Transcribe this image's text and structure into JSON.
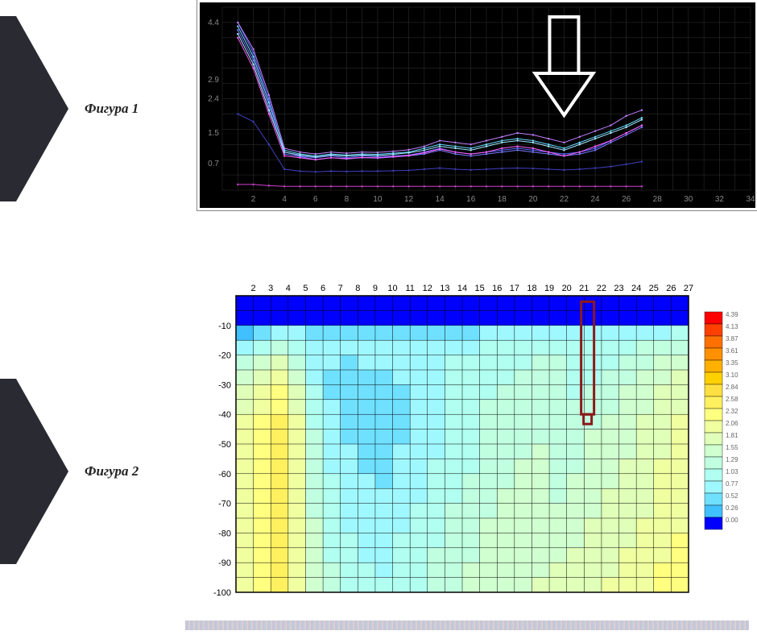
{
  "labels": {
    "fig1": "Фигура 1",
    "fig2": "Фигура 2"
  },
  "decor": {
    "arrow_color": "#2a2a33",
    "page_bg": "#ffffff"
  },
  "line_chart": {
    "type": "line",
    "bg": "#000000",
    "grid_color": "#333333",
    "axis_color": "#888888",
    "border_color": "#ffffff",
    "xlim": [
      0,
      34
    ],
    "ylim": [
      0,
      4.8
    ],
    "xticks": [
      2,
      4,
      6,
      8,
      10,
      12,
      14,
      16,
      18,
      20,
      22,
      24,
      26,
      28,
      30,
      32,
      34
    ],
    "yticks": [
      0.7,
      1.5,
      2.4,
      2.9,
      4.4
    ],
    "arrow_annotation": {
      "x": 22,
      "color": "#ffffff",
      "stroke_width": 4
    },
    "series": [
      {
        "color": "#5b6bff",
        "width": 1,
        "y": [
          4.4,
          3.6,
          2.4,
          1.0,
          0.9,
          0.85,
          0.9,
          0.85,
          0.9,
          0.88,
          0.9,
          0.92,
          1.0,
          1.1,
          1.0,
          0.95,
          1.0,
          1.05,
          1.1,
          1.05,
          1.0,
          0.95,
          1.0,
          1.1,
          1.3,
          1.5,
          1.7
        ]
      },
      {
        "color": "#7a7aff",
        "width": 1,
        "y": [
          4.2,
          3.4,
          2.2,
          0.95,
          0.88,
          0.8,
          0.85,
          0.82,
          0.85,
          0.84,
          0.87,
          0.9,
          0.95,
          1.05,
          0.95,
          0.9,
          0.95,
          1.0,
          1.05,
          1.0,
          0.95,
          0.9,
          0.95,
          1.05,
          1.25,
          1.45,
          1.65
        ]
      },
      {
        "color": "#67d9ff",
        "width": 1,
        "y": [
          4.3,
          3.5,
          2.3,
          1.05,
          0.95,
          0.9,
          0.95,
          0.92,
          0.95,
          0.94,
          0.97,
          1.0,
          1.1,
          1.2,
          1.15,
          1.1,
          1.2,
          1.3,
          1.35,
          1.3,
          1.2,
          1.1,
          1.25,
          1.4,
          1.55,
          1.7,
          1.9
        ]
      },
      {
        "color": "#a5e8ff",
        "width": 1,
        "y": [
          4.1,
          3.3,
          2.1,
          1.0,
          0.92,
          0.87,
          0.92,
          0.9,
          0.92,
          0.91,
          0.94,
          0.98,
          1.05,
          1.15,
          1.1,
          1.05,
          1.15,
          1.25,
          1.3,
          1.25,
          1.15,
          1.05,
          1.2,
          1.35,
          1.5,
          1.65,
          1.85
        ]
      },
      {
        "color": "#c080ff",
        "width": 1,
        "y": [
          4.4,
          3.7,
          2.5,
          1.1,
          1.0,
          0.95,
          1.0,
          0.97,
          1.0,
          0.99,
          1.02,
          1.06,
          1.15,
          1.3,
          1.25,
          1.2,
          1.3,
          1.4,
          1.5,
          1.45,
          1.35,
          1.25,
          1.4,
          1.55,
          1.7,
          1.95,
          2.1
        ]
      },
      {
        "color": "#ff60ff",
        "width": 1,
        "y": [
          4.0,
          3.2,
          2.0,
          0.9,
          0.85,
          0.8,
          0.85,
          0.83,
          0.86,
          0.85,
          0.88,
          0.91,
          0.98,
          1.08,
          1.0,
          0.95,
          1.0,
          1.1,
          1.15,
          1.1,
          1.0,
          0.9,
          1.0,
          1.15,
          1.3,
          1.5,
          1.7
        ]
      },
      {
        "color": "#4040c0",
        "width": 1,
        "y": [
          2.0,
          1.8,
          1.2,
          0.55,
          0.5,
          0.48,
          0.5,
          0.49,
          0.5,
          0.5,
          0.51,
          0.52,
          0.55,
          0.58,
          0.55,
          0.53,
          0.55,
          0.57,
          0.58,
          0.57,
          0.55,
          0.53,
          0.55,
          0.58,
          0.62,
          0.68,
          0.75
        ]
      },
      {
        "color": "#d040d0",
        "width": 1,
        "y": [
          0.15,
          0.15,
          0.12,
          0.1,
          0.1,
          0.1,
          0.1,
          0.1,
          0.1,
          0.1,
          0.1,
          0.1,
          0.1,
          0.1,
          0.1,
          0.1,
          0.1,
          0.1,
          0.1,
          0.1,
          0.1,
          0.1,
          0.1,
          0.1,
          0.1,
          0.1,
          0.1
        ]
      }
    ]
  },
  "heatmap": {
    "type": "heatmap",
    "xlim": [
      1,
      27
    ],
    "ylim": [
      -100,
      0
    ],
    "xticks": [
      2,
      3,
      4,
      5,
      6,
      7,
      8,
      9,
      10,
      11,
      12,
      13,
      14,
      15,
      16,
      17,
      18,
      19,
      20,
      21,
      22,
      23,
      24,
      25,
      26,
      27
    ],
    "yticks": [
      -10,
      -20,
      -30,
      -40,
      -50,
      -60,
      -70,
      -80,
      -90,
      -100
    ],
    "grid_color": "#000000",
    "grid_width": 0.5,
    "callout_box": {
      "x": 21.2,
      "y_top": -2,
      "y_bot": -40,
      "color": "#8b1a1a",
      "width": 3
    },
    "legend": [
      {
        "v": "4.39",
        "c": "#ff0000"
      },
      {
        "v": "4.13",
        "c": "#ff4000"
      },
      {
        "v": "3.87",
        "c": "#ff7000"
      },
      {
        "v": "3.61",
        "c": "#ff9000"
      },
      {
        "v": "3.35",
        "c": "#ffb000"
      },
      {
        "v": "3.10",
        "c": "#ffd000"
      },
      {
        "v": "2.84",
        "c": "#ffe040"
      },
      {
        "v": "2.58",
        "c": "#fff060"
      },
      {
        "v": "2.32",
        "c": "#ffff80"
      },
      {
        "v": "2.06",
        "c": "#f0ffa0"
      },
      {
        "v": "1.81",
        "c": "#e0ffb8"
      },
      {
        "v": "1.55",
        "c": "#d0ffd0"
      },
      {
        "v": "1.29",
        "c": "#c0ffe0"
      },
      {
        "v": "1.03",
        "c": "#b0fff0"
      },
      {
        "v": "0.77",
        "c": "#a0f8ff"
      },
      {
        "v": "0.52",
        "c": "#70e0ff"
      },
      {
        "v": "0.26",
        "c": "#40c0ff"
      },
      {
        "v": "0.00",
        "c": "#0000ff"
      }
    ],
    "cells": {
      "nx": 26,
      "ny": 20,
      "color_rows": [
        [
          "#0000ff",
          "#0000ff",
          "#0000ff",
          "#0000ff",
          "#0000ff",
          "#0000ff",
          "#0000ff",
          "#0000ff",
          "#0000ff",
          "#0000ff",
          "#0000ff",
          "#0000ff",
          "#0000ff",
          "#0000ff",
          "#0000ff",
          "#0000ff",
          "#0000ff",
          "#0000ff",
          "#0000ff",
          "#0000ff",
          "#0000ff",
          "#0000ff",
          "#0000ff",
          "#0000ff",
          "#0000ff",
          "#0000ff"
        ],
        [
          "#0000ff",
          "#0000ff",
          "#0000ff",
          "#0000ff",
          "#0000ff",
          "#0000ff",
          "#0000ff",
          "#0000ff",
          "#0000ff",
          "#0000ff",
          "#0000ff",
          "#0000ff",
          "#0000ff",
          "#0000ff",
          "#0000ff",
          "#0000ff",
          "#0000ff",
          "#0000ff",
          "#0000ff",
          "#0000ff",
          "#0000ff",
          "#0000ff",
          "#0000ff",
          "#0000ff",
          "#0000ff",
          "#0000ff"
        ],
        [
          "#40c0ff",
          "#70e0ff",
          "#a0f8ff",
          "#a0f8ff",
          "#70e0ff",
          "#70e0ff",
          "#70e0ff",
          "#70e0ff",
          "#70e0ff",
          "#70e0ff",
          "#70e0ff",
          "#70e0ff",
          "#70e0ff",
          "#70e0ff",
          "#a0f8ff",
          "#a0f8ff",
          "#a0f8ff",
          "#a0f8ff",
          "#a0f8ff",
          "#a0f8ff",
          "#a0f8ff",
          "#a0f8ff",
          "#a0f8ff",
          "#a0f8ff",
          "#a0f8ff",
          "#b0fff0"
        ],
        [
          "#a0f8ff",
          "#b0fff0",
          "#c0ffe0",
          "#b0fff0",
          "#a0f8ff",
          "#a0f8ff",
          "#a0f8ff",
          "#a0f8ff",
          "#a0f8ff",
          "#a0f8ff",
          "#a0f8ff",
          "#a0f8ff",
          "#a0f8ff",
          "#a0f8ff",
          "#b0fff0",
          "#b0fff0",
          "#b0fff0",
          "#b0fff0",
          "#b0fff0",
          "#b0fff0",
          "#b0fff0",
          "#b0fff0",
          "#b0fff0",
          "#c0ffe0",
          "#c0ffe0",
          "#c0ffe0"
        ],
        [
          "#c0ffe0",
          "#d0ffd0",
          "#e0ffb8",
          "#c0ffe0",
          "#a0f8ff",
          "#a0f8ff",
          "#70e0ff",
          "#a0f8ff",
          "#a0f8ff",
          "#a0f8ff",
          "#a0f8ff",
          "#a0f8ff",
          "#b0fff0",
          "#b0fff0",
          "#b0fff0",
          "#b0fff0",
          "#b0fff0",
          "#c0ffe0",
          "#c0ffe0",
          "#b0fff0",
          "#b0fff0",
          "#b0fff0",
          "#c0ffe0",
          "#c0ffe0",
          "#d0ffd0",
          "#d0ffd0"
        ],
        [
          "#d0ffd0",
          "#e0ffb8",
          "#f0ffa0",
          "#d0ffd0",
          "#a0f8ff",
          "#70e0ff",
          "#70e0ff",
          "#70e0ff",
          "#70e0ff",
          "#a0f8ff",
          "#a0f8ff",
          "#a0f8ff",
          "#b0fff0",
          "#b0fff0",
          "#b0fff0",
          "#b0fff0",
          "#c0ffe0",
          "#c0ffe0",
          "#c0ffe0",
          "#b0fff0",
          "#b0fff0",
          "#c0ffe0",
          "#c0ffe0",
          "#d0ffd0",
          "#d0ffd0",
          "#e0ffb8"
        ],
        [
          "#e0ffb8",
          "#f0ffa0",
          "#ffff80",
          "#e0ffb8",
          "#b0fff0",
          "#70e0ff",
          "#70e0ff",
          "#70e0ff",
          "#70e0ff",
          "#70e0ff",
          "#a0f8ff",
          "#a0f8ff",
          "#b0fff0",
          "#b0fff0",
          "#b0fff0",
          "#c0ffe0",
          "#c0ffe0",
          "#c0ffe0",
          "#c0ffe0",
          "#b0fff0",
          "#c0ffe0",
          "#c0ffe0",
          "#d0ffd0",
          "#d0ffd0",
          "#e0ffb8",
          "#e0ffb8"
        ],
        [
          "#e0ffb8",
          "#f0ffa0",
          "#ffff80",
          "#e0ffb8",
          "#b0fff0",
          "#a0f8ff",
          "#70e0ff",
          "#70e0ff",
          "#70e0ff",
          "#70e0ff",
          "#a0f8ff",
          "#a0f8ff",
          "#b0fff0",
          "#b0fff0",
          "#c0ffe0",
          "#c0ffe0",
          "#c0ffe0",
          "#c0ffe0",
          "#c0ffe0",
          "#c0ffe0",
          "#c0ffe0",
          "#c0ffe0",
          "#d0ffd0",
          "#d0ffd0",
          "#e0ffb8",
          "#e0ffb8"
        ],
        [
          "#f0ffa0",
          "#ffff80",
          "#fff060",
          "#f0ffa0",
          "#b0fff0",
          "#a0f8ff",
          "#70e0ff",
          "#70e0ff",
          "#70e0ff",
          "#70e0ff",
          "#a0f8ff",
          "#a0f8ff",
          "#b0fff0",
          "#b0fff0",
          "#c0ffe0",
          "#c0ffe0",
          "#c0ffe0",
          "#c0ffe0",
          "#c0ffe0",
          "#c0ffe0",
          "#c0ffe0",
          "#d0ffd0",
          "#d0ffd0",
          "#e0ffb8",
          "#e0ffb8",
          "#f0ffa0"
        ],
        [
          "#f0ffa0",
          "#ffff80",
          "#fff060",
          "#f0ffa0",
          "#c0ffe0",
          "#a0f8ff",
          "#70e0ff",
          "#70e0ff",
          "#70e0ff",
          "#70e0ff",
          "#a0f8ff",
          "#a0f8ff",
          "#b0fff0",
          "#b0fff0",
          "#c0ffe0",
          "#c0ffe0",
          "#c0ffe0",
          "#c0ffe0",
          "#c0ffe0",
          "#c0ffe0",
          "#d0ffd0",
          "#d0ffd0",
          "#d0ffd0",
          "#e0ffb8",
          "#e0ffb8",
          "#f0ffa0"
        ],
        [
          "#f0ffa0",
          "#ffff80",
          "#fff060",
          "#f0ffa0",
          "#c0ffe0",
          "#a0f8ff",
          "#a0f8ff",
          "#70e0ff",
          "#70e0ff",
          "#a0f8ff",
          "#a0f8ff",
          "#a0f8ff",
          "#b0fff0",
          "#b0fff0",
          "#c0ffe0",
          "#c0ffe0",
          "#c0ffe0",
          "#d0ffd0",
          "#c0ffe0",
          "#c0ffe0",
          "#d0ffd0",
          "#d0ffd0",
          "#d0ffd0",
          "#e0ffb8",
          "#e0ffb8",
          "#f0ffa0"
        ],
        [
          "#f0ffa0",
          "#ffff80",
          "#fff060",
          "#f0ffa0",
          "#c0ffe0",
          "#a0f8ff",
          "#a0f8ff",
          "#70e0ff",
          "#70e0ff",
          "#a0f8ff",
          "#a0f8ff",
          "#b0fff0",
          "#b0fff0",
          "#b0fff0",
          "#c0ffe0",
          "#c0ffe0",
          "#d0ffd0",
          "#d0ffd0",
          "#c0ffe0",
          "#c0ffe0",
          "#d0ffd0",
          "#d0ffd0",
          "#e0ffb8",
          "#e0ffb8",
          "#f0ffa0",
          "#f0ffa0"
        ],
        [
          "#f0ffa0",
          "#ffff80",
          "#fff060",
          "#f0ffa0",
          "#c0ffe0",
          "#b0fff0",
          "#a0f8ff",
          "#a0f8ff",
          "#70e0ff",
          "#a0f8ff",
          "#a0f8ff",
          "#b0fff0",
          "#b0fff0",
          "#c0ffe0",
          "#c0ffe0",
          "#c0ffe0",
          "#d0ffd0",
          "#d0ffd0",
          "#c0ffe0",
          "#d0ffd0",
          "#d0ffd0",
          "#d0ffd0",
          "#e0ffb8",
          "#e0ffb8",
          "#f0ffa0",
          "#f0ffa0"
        ],
        [
          "#f0ffa0",
          "#ffff80",
          "#fff060",
          "#f0ffa0",
          "#c0ffe0",
          "#b0fff0",
          "#a0f8ff",
          "#a0f8ff",
          "#a0f8ff",
          "#a0f8ff",
          "#a0f8ff",
          "#b0fff0",
          "#b0fff0",
          "#c0ffe0",
          "#c0ffe0",
          "#d0ffd0",
          "#d0ffd0",
          "#d0ffd0",
          "#c0ffe0",
          "#d0ffd0",
          "#d0ffd0",
          "#e0ffb8",
          "#e0ffb8",
          "#e0ffb8",
          "#f0ffa0",
          "#f0ffa0"
        ],
        [
          "#f0ffa0",
          "#ffff80",
          "#fff060",
          "#f0ffa0",
          "#c0ffe0",
          "#b0fff0",
          "#a0f8ff",
          "#a0f8ff",
          "#a0f8ff",
          "#a0f8ff",
          "#b0fff0",
          "#b0fff0",
          "#c0ffe0",
          "#c0ffe0",
          "#c0ffe0",
          "#d0ffd0",
          "#d0ffd0",
          "#d0ffd0",
          "#d0ffd0",
          "#d0ffd0",
          "#d0ffd0",
          "#e0ffb8",
          "#e0ffb8",
          "#e0ffb8",
          "#f0ffa0",
          "#f0ffa0"
        ],
        [
          "#f0ffa0",
          "#ffff80",
          "#fff060",
          "#f0ffa0",
          "#d0ffd0",
          "#b0fff0",
          "#a0f8ff",
          "#a0f8ff",
          "#a0f8ff",
          "#a0f8ff",
          "#b0fff0",
          "#b0fff0",
          "#c0ffe0",
          "#c0ffe0",
          "#d0ffd0",
          "#d0ffd0",
          "#d0ffd0",
          "#d0ffd0",
          "#d0ffd0",
          "#d0ffd0",
          "#e0ffb8",
          "#e0ffb8",
          "#e0ffb8",
          "#f0ffa0",
          "#f0ffa0",
          "#f0ffa0"
        ],
        [
          "#f0ffa0",
          "#ffff80",
          "#fff060",
          "#f0ffa0",
          "#d0ffd0",
          "#b0fff0",
          "#b0fff0",
          "#a0f8ff",
          "#a0f8ff",
          "#b0fff0",
          "#b0fff0",
          "#b0fff0",
          "#c0ffe0",
          "#c0ffe0",
          "#d0ffd0",
          "#d0ffd0",
          "#d0ffd0",
          "#d0ffd0",
          "#d0ffd0",
          "#d0ffd0",
          "#e0ffb8",
          "#e0ffb8",
          "#e0ffb8",
          "#f0ffa0",
          "#f0ffa0",
          "#ffff80"
        ],
        [
          "#f0ffa0",
          "#ffff80",
          "#fff060",
          "#f0ffa0",
          "#d0ffd0",
          "#b0fff0",
          "#b0fff0",
          "#a0f8ff",
          "#a0f8ff",
          "#b0fff0",
          "#b0fff0",
          "#c0ffe0",
          "#c0ffe0",
          "#c0ffe0",
          "#d0ffd0",
          "#d0ffd0",
          "#d0ffd0",
          "#d0ffd0",
          "#d0ffd0",
          "#e0ffb8",
          "#e0ffb8",
          "#e0ffb8",
          "#f0ffa0",
          "#f0ffa0",
          "#f0ffa0",
          "#ffff80"
        ],
        [
          "#f0ffa0",
          "#ffff80",
          "#fff060",
          "#f0ffa0",
          "#d0ffd0",
          "#c0ffe0",
          "#b0fff0",
          "#b0fff0",
          "#a0f8ff",
          "#b0fff0",
          "#b0fff0",
          "#c0ffe0",
          "#c0ffe0",
          "#d0ffd0",
          "#d0ffd0",
          "#d0ffd0",
          "#d0ffd0",
          "#d0ffd0",
          "#e0ffb8",
          "#e0ffb8",
          "#e0ffb8",
          "#e0ffb8",
          "#f0ffa0",
          "#f0ffa0",
          "#ffff80",
          "#ffff80"
        ],
        [
          "#f0ffa0",
          "#ffff80",
          "#fff060",
          "#f0ffa0",
          "#d0ffd0",
          "#c0ffe0",
          "#b0fff0",
          "#b0fff0",
          "#b0fff0",
          "#b0fff0",
          "#b0fff0",
          "#c0ffe0",
          "#c0ffe0",
          "#d0ffd0",
          "#d0ffd0",
          "#d0ffd0",
          "#d0ffd0",
          "#e0ffb8",
          "#e0ffb8",
          "#e0ffb8",
          "#e0ffb8",
          "#f0ffa0",
          "#f0ffa0",
          "#f0ffa0",
          "#ffff80",
          "#ffff80"
        ]
      ]
    }
  }
}
